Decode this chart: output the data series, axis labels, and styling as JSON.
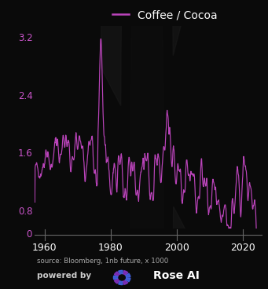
{
  "title": "Coffee / Cocoa",
  "line_color": "#BB44BB",
  "bg_color": "#0a0a0a",
  "text_color": "#ffffff",
  "ytick_color": "#CC55CC",
  "xtick_color": "#ffffff",
  "axis_line_color": "#666666",
  "yticks": [
    0.8,
    1.6,
    2.4,
    3.2
  ],
  "xticks": [
    1960,
    1980,
    2000,
    2020
  ],
  "xlim": [
    1957,
    2026
  ],
  "ylim_plot": [
    0.55,
    3.35
  ],
  "ylim_xaxis": [
    0,
    1
  ],
  "source_text": "source: Bloomberg, 1nb future, x 1000",
  "powered_by": "powered by",
  "rose_ai": "Rose AI",
  "figsize": [
    3.41,
    3.68
  ],
  "dpi": 100,
  "icon_color_blue": "#4466ee",
  "icon_color_purple": "#8833cc"
}
